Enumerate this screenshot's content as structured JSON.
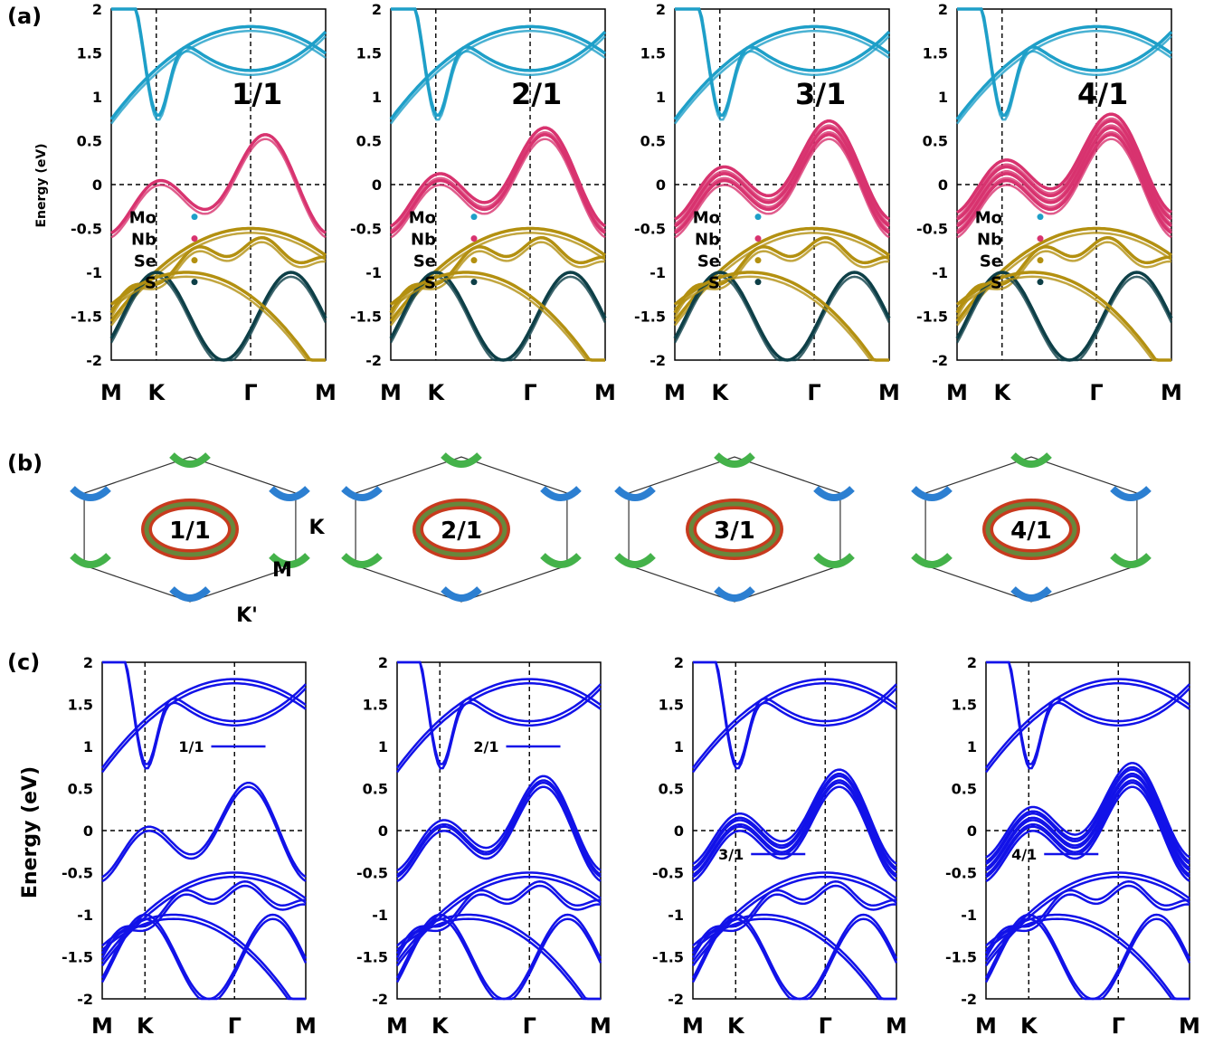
{
  "panel_labels": [
    "(a)",
    "(b)",
    "(c)"
  ],
  "ratios": [
    "1/1",
    "2/1",
    "3/1",
    "4/1"
  ],
  "colors": {
    "Mo": "#1e9fc8",
    "Nb": "#d8336f",
    "Se": "#b39010",
    "S": "#0d3f47",
    "band_c": "#1212e8"
  },
  "chart_data": [
    {
      "type": "line",
      "panel": "(a)",
      "ylabel": "Energy (eV)",
      "ylim": [
        -2,
        2
      ],
      "yticks": [
        "2",
        "1.5",
        "1",
        "0.5",
        "0",
        "-0.5",
        "-1",
        "-1.5",
        "-2"
      ],
      "xticks": [
        "M",
        "K",
        "Γ",
        "M"
      ],
      "legend": [
        "Mo",
        "Nb",
        "Se",
        "S"
      ],
      "subplot_titles": [
        "1/1",
        "2/1",
        "3/1",
        "4/1"
      ]
    },
    {
      "type": "other",
      "panel": "(b)",
      "description_labels": [
        "K",
        "M",
        "K'"
      ],
      "subplot_titles": [
        "1/1",
        "2/1",
        "3/1",
        "4/1"
      ]
    },
    {
      "type": "line",
      "panel": "(c)",
      "ylabel": "Energy (eV)",
      "ylim": [
        -2,
        2
      ],
      "yticks": [
        "2",
        "1.5",
        "1",
        "0.5",
        "0",
        "-0.5",
        "-1",
        "-1.5",
        "-2"
      ],
      "xticks": [
        "M",
        "K",
        "Γ",
        "M"
      ],
      "legend": [
        "1/1",
        "2/1",
        "3/1",
        "4/1"
      ]
    }
  ],
  "fs_labels": {
    "K": "K",
    "M": "M",
    "Kp": "K'"
  },
  "legend_a": [
    "Mo",
    "Nb",
    "Se",
    "S"
  ]
}
